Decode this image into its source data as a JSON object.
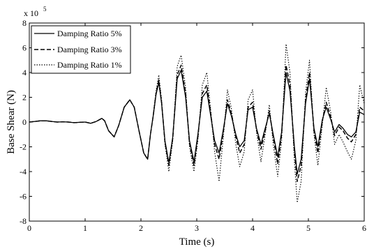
{
  "chart_data": {
    "type": "line",
    "title": "",
    "xlabel": "Time (s)",
    "ylabel": "Base Shear (N)",
    "y_multiplier_label": "x 10",
    "y_multiplier_exponent": "5",
    "xlim": [
      0,
      6
    ],
    "ylim": [
      -8,
      8
    ],
    "x_ticks": [
      0,
      1,
      2,
      3,
      4,
      5,
      6
    ],
    "y_ticks": [
      -8,
      -6,
      -4,
      -2,
      0,
      2,
      4,
      6,
      8
    ],
    "grid": false,
    "legend_position": "top-left",
    "series": [
      {
        "name": "Damping Ratio 5%",
        "line_style": "solid",
        "color": "#000000",
        "x": [
          0,
          0.1,
          0.2,
          0.3,
          0.4,
          0.5,
          0.6,
          0.7,
          0.8,
          0.9,
          1.0,
          1.1,
          1.2,
          1.3,
          1.35,
          1.42,
          1.52,
          1.6,
          1.7,
          1.8,
          1.88,
          1.97,
          2.05,
          2.12,
          2.17,
          2.22,
          2.27,
          2.32,
          2.37,
          2.43,
          2.5,
          2.57,
          2.65,
          2.72,
          2.8,
          2.87,
          2.95,
          3.02,
          3.1,
          3.18,
          3.25,
          3.32,
          3.4,
          3.48,
          3.55,
          3.62,
          3.7,
          3.77,
          3.85,
          3.92,
          4.0,
          4.07,
          4.15,
          4.22,
          4.3,
          4.37,
          4.45,
          4.52,
          4.6,
          4.67,
          4.75,
          4.8,
          4.87,
          4.95,
          5.02,
          5.1,
          5.17,
          5.25,
          5.32,
          5.4,
          5.47,
          5.55,
          5.62,
          5.7,
          5.77,
          5.85,
          5.92,
          6.0
        ],
        "y": [
          0,
          0.05,
          0.1,
          0.1,
          0.05,
          0,
          0.02,
          0,
          -0.05,
          -0.02,
          0,
          -0.1,
          0.05,
          0.3,
          0.1,
          -0.7,
          -1.2,
          -0.3,
          1.2,
          1.8,
          1.2,
          -0.8,
          -2.5,
          -3.0,
          -1.0,
          0.5,
          2.2,
          3.2,
          1.5,
          -1.5,
          -3.3,
          -1.2,
          3.5,
          4.2,
          2.0,
          -1.5,
          -3.2,
          -1.0,
          2.0,
          2.5,
          0.5,
          -1.5,
          -2.5,
          -0.5,
          1.5,
          0.5,
          -1.0,
          -2.0,
          -1.5,
          1.0,
          1.2,
          -0.5,
          -1.8,
          -0.6,
          0.7,
          -1.0,
          -2.8,
          -0.8,
          4.0,
          2.5,
          -2.0,
          -4.2,
          -3.0,
          1.5,
          3.5,
          -0.5,
          -2.0,
          0.2,
          1.2,
          0.2,
          -0.8,
          -0.2,
          -0.5,
          -1.0,
          -1.2,
          -0.8,
          0.8,
          0.6
        ]
      },
      {
        "name": "Damping Ratio 3%",
        "line_style": "dashed",
        "color": "#000000",
        "x": [
          0,
          0.1,
          0.2,
          0.3,
          0.4,
          0.5,
          0.6,
          0.7,
          0.8,
          0.9,
          1.0,
          1.1,
          1.2,
          1.3,
          1.35,
          1.42,
          1.52,
          1.6,
          1.7,
          1.8,
          1.88,
          1.97,
          2.05,
          2.12,
          2.17,
          2.22,
          2.27,
          2.32,
          2.37,
          2.43,
          2.5,
          2.57,
          2.65,
          2.72,
          2.8,
          2.87,
          2.95,
          3.02,
          3.1,
          3.18,
          3.25,
          3.32,
          3.4,
          3.48,
          3.55,
          3.62,
          3.7,
          3.77,
          3.85,
          3.92,
          4.0,
          4.07,
          4.15,
          4.22,
          4.3,
          4.37,
          4.45,
          4.52,
          4.6,
          4.67,
          4.75,
          4.8,
          4.87,
          4.95,
          5.02,
          5.1,
          5.17,
          5.25,
          5.32,
          5.4,
          5.47,
          5.55,
          5.62,
          5.7,
          5.77,
          5.85,
          5.92,
          6.0
        ],
        "y": [
          0,
          0.05,
          0.1,
          0.1,
          0.05,
          0,
          0.02,
          0,
          -0.05,
          -0.02,
          0,
          -0.1,
          0.05,
          0.3,
          0.1,
          -0.7,
          -1.2,
          -0.3,
          1.2,
          1.8,
          1.2,
          -0.8,
          -2.5,
          -3.0,
          -1.0,
          0.5,
          2.3,
          3.4,
          1.6,
          -1.6,
          -3.5,
          -1.3,
          3.8,
          4.6,
          2.3,
          -1.7,
          -3.5,
          -1.2,
          2.3,
          3.0,
          0.7,
          -1.8,
          -3.0,
          -0.7,
          1.8,
          0.7,
          -1.2,
          -2.5,
          -1.8,
          1.2,
          1.6,
          -0.6,
          -2.2,
          -0.8,
          0.9,
          -1.2,
          -3.4,
          -1.0,
          4.6,
          3.0,
          -2.4,
          -4.8,
          -3.5,
          1.8,
          4.0,
          -0.7,
          -2.5,
          0.1,
          1.6,
          0.4,
          -1.1,
          -0.4,
          -0.7,
          -1.3,
          -1.6,
          -1.0,
          1.2,
          0.9
        ]
      },
      {
        "name": "Damping Ratio 1%",
        "line_style": "dotted",
        "color": "#000000",
        "x": [
          0,
          0.1,
          0.2,
          0.3,
          0.4,
          0.5,
          0.6,
          0.7,
          0.8,
          0.9,
          1.0,
          1.1,
          1.2,
          1.3,
          1.35,
          1.42,
          1.52,
          1.6,
          1.7,
          1.8,
          1.88,
          1.97,
          2.05,
          2.12,
          2.17,
          2.22,
          2.27,
          2.32,
          2.37,
          2.43,
          2.5,
          2.57,
          2.65,
          2.72,
          2.8,
          2.87,
          2.95,
          3.02,
          3.1,
          3.18,
          3.25,
          3.32,
          3.4,
          3.48,
          3.55,
          3.62,
          3.7,
          3.77,
          3.85,
          3.92,
          4.0,
          4.07,
          4.15,
          4.22,
          4.3,
          4.37,
          4.45,
          4.52,
          4.6,
          4.67,
          4.75,
          4.8,
          4.87,
          4.95,
          5.02,
          5.1,
          5.17,
          5.25,
          5.32,
          5.4,
          5.47,
          5.55,
          5.62,
          5.7,
          5.77,
          5.85,
          5.92,
          6.0
        ],
        "y": [
          0,
          0.05,
          0.1,
          0.1,
          0.05,
          0,
          0.02,
          0,
          -0.05,
          -0.02,
          0,
          -0.1,
          0.05,
          0.3,
          0.1,
          -0.7,
          -1.2,
          -0.3,
          1.2,
          1.8,
          1.2,
          -0.8,
          -2.5,
          -3.0,
          -1.0,
          0.6,
          2.5,
          3.8,
          1.8,
          -1.8,
          -4.0,
          -1.5,
          4.5,
          5.4,
          2.8,
          -2.0,
          -4.0,
          -1.5,
          3.0,
          4.0,
          1.0,
          -2.4,
          -4.8,
          -1.0,
          2.6,
          1.1,
          -1.8,
          -3.6,
          -2.4,
          1.8,
          2.6,
          -0.8,
          -3.2,
          -1.2,
          1.4,
          -1.8,
          -4.4,
          -1.5,
          6.3,
          4.0,
          -3.2,
          -6.5,
          -4.8,
          2.4,
          5.0,
          -1.0,
          -3.5,
          -0.2,
          2.8,
          0.8,
          -1.8,
          -1.0,
          -1.6,
          -2.4,
          -3.0,
          -1.5,
          3.0,
          1.5
        ]
      }
    ]
  }
}
